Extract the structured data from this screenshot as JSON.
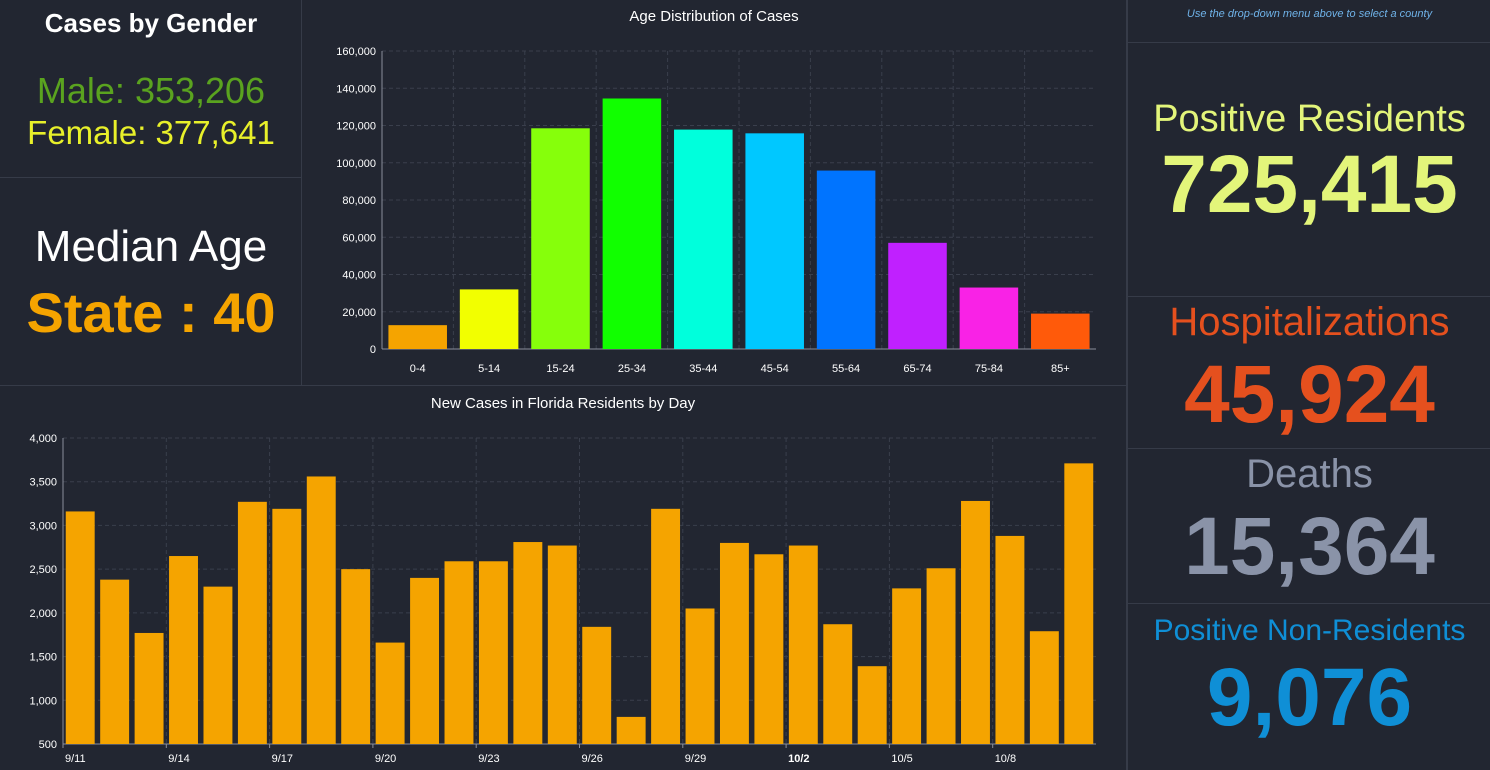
{
  "gender": {
    "title": "Cases by Gender",
    "male": "Male: 353,206",
    "female": "Female: 377,641",
    "male_color": "#5aa31f",
    "female_color": "#e8f02a"
  },
  "median_age": {
    "label": "Median Age",
    "value": "State : 40",
    "value_color": "#f5a400"
  },
  "right_panel": {
    "hint": "Use the drop-down menu above to select a county",
    "hint_color": "#6fb2e8",
    "positive_residents": {
      "label": "Positive Residents",
      "value": "725,415",
      "color": "#e3f57a"
    },
    "hospitalizations": {
      "label": "Hospitalizations",
      "value": "45,924",
      "color": "#e5501e"
    },
    "deaths": {
      "label": "Deaths",
      "value": "15,364",
      "color": "#8a93a8"
    },
    "positive_non_residents": {
      "label": "Positive Non-Residents",
      "value": "9,076",
      "color": "#0f8fd6"
    }
  },
  "chart_data": [
    {
      "type": "bar",
      "title": "Age Distribution of Cases",
      "categories": [
        "0-4",
        "5-14",
        "15-24",
        "25-34",
        "35-44",
        "45-54",
        "55-64",
        "65-74",
        "75-84",
        "85+"
      ],
      "values": [
        12800,
        32000,
        118500,
        134500,
        117800,
        115800,
        95800,
        57000,
        33000,
        19000
      ],
      "colors": [
        "#f5a400",
        "#f2ff00",
        "#86ff0b",
        "#11ff00",
        "#00ffdc",
        "#00c8ff",
        "#0074ff",
        "#c020ff",
        "#f922e6",
        "#ff5a0a"
      ],
      "ylim": [
        0,
        160000
      ],
      "yticks": [
        "0",
        "20,000",
        "40,000",
        "60,000",
        "80,000",
        "100,000",
        "120,000",
        "140,000",
        "160,000"
      ],
      "grid": true
    },
    {
      "type": "bar",
      "title": "New Cases in Florida Residents by Day",
      "categories": [
        "9/11",
        "9/12",
        "9/13",
        "9/14",
        "9/15",
        "9/16",
        "9/17",
        "9/18",
        "9/19",
        "9/20",
        "9/21",
        "9/22",
        "9/23",
        "9/24",
        "9/25",
        "9/26",
        "9/27",
        "9/28",
        "9/29",
        "9/30",
        "10/1",
        "10/2",
        "10/3",
        "10/4",
        "10/5",
        "10/6",
        "10/7",
        "10/8",
        "10/9",
        "10/10"
      ],
      "values": [
        3160,
        2380,
        1770,
        2650,
        2300,
        3270,
        3190,
        3560,
        2500,
        1660,
        2400,
        2590,
        2590,
        2810,
        2770,
        1840,
        810,
        3190,
        2050,
        2800,
        2670,
        2770,
        1870,
        1390,
        2280,
        2510,
        3280,
        2880,
        1790,
        3710
      ],
      "xtick_labels": [
        "9/11",
        "9/14",
        "9/17",
        "9/20",
        "9/23",
        "9/26",
        "9/29",
        "10/2",
        "10/5",
        "10/8"
      ],
      "xtick_indices": [
        0,
        3,
        6,
        9,
        12,
        15,
        18,
        21,
        24,
        27
      ],
      "bold_tick": "10/2",
      "color": "#f5a400",
      "ylim": [
        500,
        4000
      ],
      "yticks": [
        "500",
        "1,000",
        "1,500",
        "2,000",
        "2,500",
        "3,000",
        "3,500",
        "4,000"
      ],
      "grid": true
    }
  ]
}
